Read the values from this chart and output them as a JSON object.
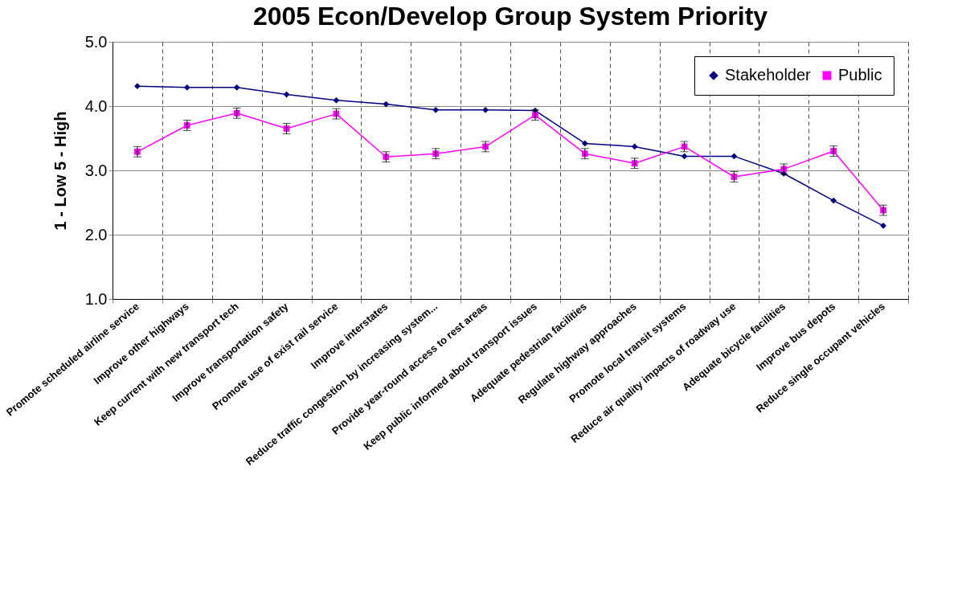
{
  "chart_data": {
    "type": "line",
    "title": "2005 Econ/Develop Group System Priority",
    "ylabel": "1 - Low     5 - High",
    "categories": [
      "Promote scheduled airline service",
      "Improve other highways",
      "Keep current with new transport tech",
      "Improve transportation safety",
      "Promote use of exist rail service",
      "Improve interstates",
      "Reduce traffic congestion by increasing system...",
      "Provide year-round access to rest areas",
      "Keep public informed about transport issues",
      "Adequate pedestrian facilities",
      "Regulate highway approaches",
      "Promote local transit systems",
      "Reduce air quality impacts of roadway use",
      "Adequate bicycle facilities",
      "Improve bus depots",
      "Reduce single occupant vehicles"
    ],
    "series": [
      {
        "name": "Stakeholder",
        "color": "#000080",
        "marker": "diamond",
        "values": [
          4.31,
          4.29,
          4.29,
          4.18,
          4.09,
          4.03,
          3.94,
          3.94,
          3.93,
          3.42,
          3.37,
          3.22,
          3.22,
          2.95,
          2.53,
          2.14
        ]
      },
      {
        "name": "Public",
        "color": "#ff00ff",
        "marker": "square",
        "values": [
          3.29,
          3.7,
          3.89,
          3.65,
          3.88,
          3.21,
          3.26,
          3.37,
          3.86,
          3.26,
          3.11,
          3.37,
          2.9,
          3.02,
          3.3,
          2.38
        ],
        "errors": [
          0.08,
          0.08,
          0.08,
          0.08,
          0.08,
          0.08,
          0.08,
          0.08,
          0.08,
          0.08,
          0.08,
          0.08,
          0.08,
          0.08,
          0.08,
          0.08
        ]
      }
    ],
    "ylim": [
      1,
      5
    ],
    "yticks": [
      {
        "value": 1,
        "label": "1.0"
      },
      {
        "value": 2,
        "label": "2.0"
      },
      {
        "value": 3,
        "label": "3.0"
      },
      {
        "value": 4,
        "label": "4.0"
      },
      {
        "value": 5,
        "label": "5.0"
      }
    ],
    "grid": true,
    "legend": "top right"
  }
}
